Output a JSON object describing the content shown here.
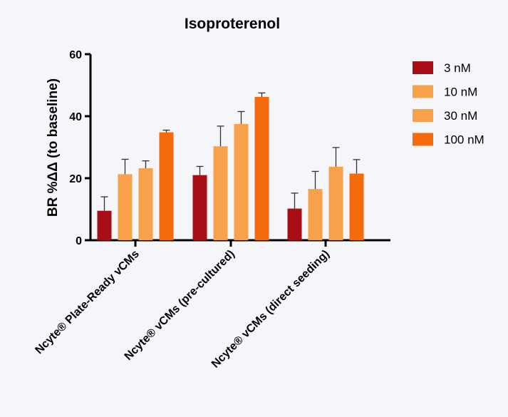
{
  "chart_data": {
    "type": "bar",
    "title": "Isoproterenol",
    "xlabel": "",
    "ylabel": "BR %ΔΔ (to baseline)",
    "ylim": [
      0,
      60
    ],
    "yticks": [
      "0",
      "20",
      "40",
      "60"
    ],
    "grid": false,
    "legend_position": "right",
    "categories": [
      "Ncyte® Plate-Ready vCMs",
      "Ncyte® vCMs (pre-cultured)",
      "Ncyte® vCMs (direct seeding)"
    ],
    "series": [
      {
        "name": "3 nM",
        "color": "#a50f15",
        "values": [
          9.5,
          21.0,
          10.2
        ],
        "errors": [
          4.5,
          2.8,
          5.0
        ]
      },
      {
        "name": "10 nM",
        "color": "#f7a24a",
        "values": [
          21.3,
          30.3,
          16.5
        ],
        "errors": [
          4.8,
          6.5,
          5.7
        ]
      },
      {
        "name": "30 nM",
        "color": "#f7a24a",
        "values": [
          23.2,
          37.5,
          23.7
        ],
        "errors": [
          2.4,
          4.0,
          6.2
        ]
      },
      {
        "name": "100 nM",
        "color": "#f56a0c",
        "values": [
          34.8,
          46.2,
          21.5
        ],
        "errors": [
          0.7,
          1.3,
          4.5
        ]
      }
    ]
  }
}
